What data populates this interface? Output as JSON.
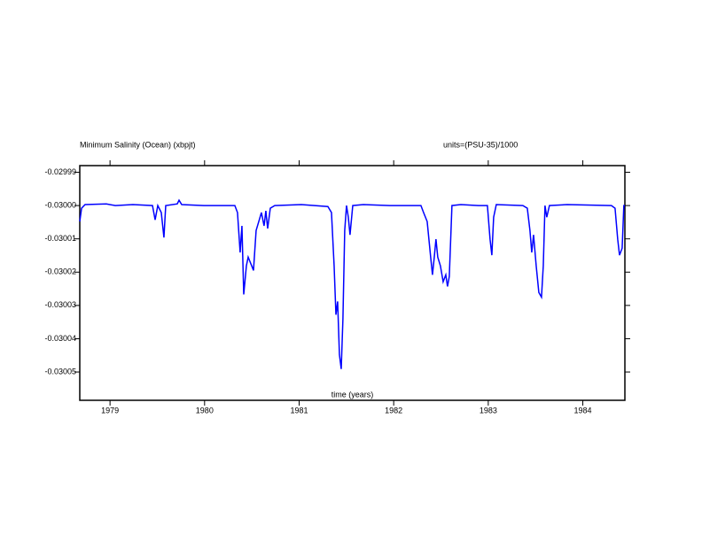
{
  "chart_data": {
    "type": "line",
    "title": "Minimum Salinity (Ocean) (xbpjt)",
    "units": "units=(PSU-35)/1000",
    "x_label": "time (years)",
    "xlim": [
      1978.68,
      1984.445
    ],
    "xticks": [
      1979,
      1980,
      1981,
      1982,
      1983,
      1984
    ],
    "ylim": [
      -0.0300585,
      -0.029988
    ],
    "yticks": [
      -0.02999,
      {
        "value": -0.03,
        "label": "-0.03000"
      },
      -0.03001,
      -0.03002,
      -0.03003,
      -0.03004,
      -0.03005
    ],
    "series": [
      {
        "color": "#0000ff",
        "x": [
          1978.68,
          1978.699,
          1978.736,
          1978.961,
          1979.055,
          1979.242,
          1979.449,
          1979.477,
          1979.505,
          1979.542,
          1979.57,
          1979.589,
          1979.711,
          1979.73,
          1979.758,
          1979.992,
          1980.32,
          1980.348,
          1980.376,
          1980.395,
          1980.414,
          1980.442,
          1980.461,
          1980.498,
          1980.517,
          1980.545,
          1980.573,
          1980.601,
          1980.629,
          1980.648,
          1980.667,
          1980.695,
          1980.742,
          1981.023,
          1981.304,
          1981.342,
          1981.37,
          1981.389,
          1981.407,
          1981.426,
          1981.445,
          1981.463,
          1981.482,
          1981.501,
          1981.52,
          1981.538,
          1981.567,
          1981.679,
          1981.96,
          1982.288,
          1982.316,
          1982.354,
          1982.391,
          1982.41,
          1982.429,
          1982.447,
          1982.466,
          1982.494,
          1982.523,
          1982.551,
          1982.569,
          1982.588,
          1982.616,
          1982.71,
          1982.897,
          1982.991,
          1983.019,
          1983.038,
          1983.057,
          1983.085,
          1983.366,
          1983.413,
          1983.441,
          1983.46,
          1983.479,
          1983.507,
          1983.535,
          1983.563,
          1983.582,
          1983.6,
          1983.619,
          1983.647,
          1983.835,
          1984.303,
          1984.341,
          1984.369,
          1984.388,
          1984.416,
          1984.434,
          1984.444
        ],
        "values": [
          -0.0300048,
          -0.0300008,
          -0.0299997,
          -0.0299995,
          -0.03,
          -0.0299997,
          -0.03,
          -0.0300043,
          -0.03,
          -0.0300021,
          -0.0300096,
          -0.03,
          -0.0299995,
          -0.0299984,
          -0.0299997,
          -0.03,
          -0.03,
          -0.0300021,
          -0.0300141,
          -0.0300061,
          -0.0300267,
          -0.0300181,
          -0.0300155,
          -0.0300181,
          -0.0300195,
          -0.0300075,
          -0.0300048,
          -0.0300021,
          -0.0300061,
          -0.0300016,
          -0.0300069,
          -0.0300008,
          -0.03,
          -0.0299997,
          -0.0300003,
          -0.0300021,
          -0.0300181,
          -0.0300328,
          -0.0300288,
          -0.0300448,
          -0.0300491,
          -0.0300341,
          -0.0300075,
          -0.03,
          -0.0300035,
          -0.0300088,
          -0.03,
          -0.0299997,
          -0.03,
          -0.03,
          -0.0300021,
          -0.0300048,
          -0.0300155,
          -0.0300208,
          -0.0300155,
          -0.0300101,
          -0.0300155,
          -0.0300181,
          -0.0300229,
          -0.0300208,
          -0.0300243,
          -0.0300213,
          -0.03,
          -0.0299997,
          -0.03,
          -0.03,
          -0.0300101,
          -0.0300149,
          -0.0300035,
          -0.0299997,
          -0.03,
          -0.0300008,
          -0.0300075,
          -0.0300141,
          -0.0300088,
          -0.0300181,
          -0.0300261,
          -0.0300275,
          -0.0300181,
          -0.03,
          -0.0300035,
          -0.03,
          -0.0299997,
          -0.03,
          -0.0300008,
          -0.0300101,
          -0.0300149,
          -0.0300128,
          -0.03,
          -0.03
        ]
      }
    ]
  }
}
